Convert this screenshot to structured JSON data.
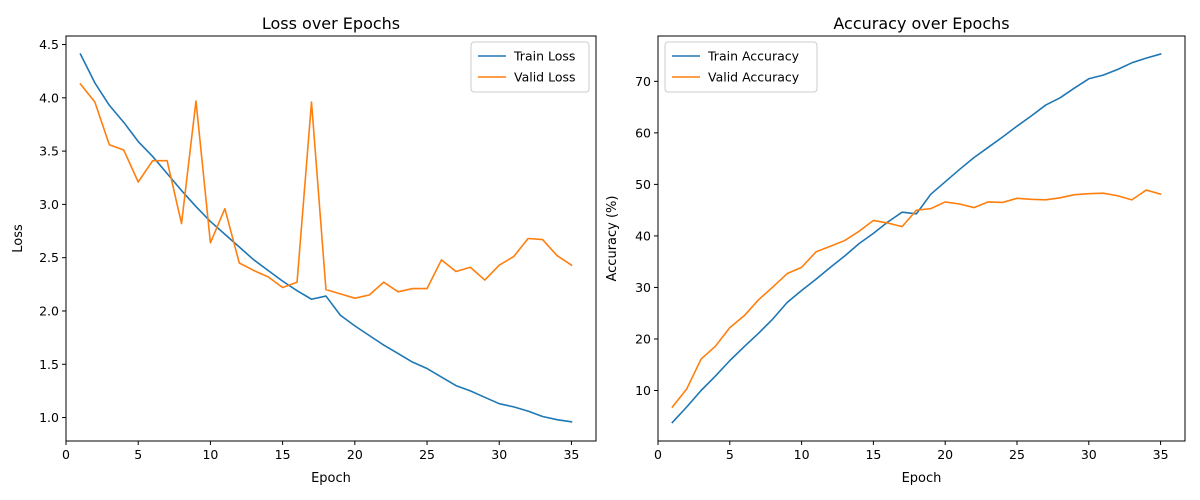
{
  "chart_data": [
    {
      "type": "line",
      "title": "Loss over Epochs",
      "xlabel": "Epoch",
      "ylabel": "Loss",
      "xlim": [
        0,
        36.7
      ],
      "ylim": [
        0.78,
        4.58
      ],
      "xticks": [
        0,
        5,
        10,
        15,
        20,
        25,
        30,
        35
      ],
      "yticks": [
        1.0,
        1.5,
        2.0,
        2.5,
        3.0,
        3.5,
        4.0,
        4.5
      ],
      "ytick_labels": [
        "1.0",
        "1.5",
        "2.0",
        "2.5",
        "3.0",
        "3.5",
        "4.0",
        "4.5"
      ],
      "legend_position": "top-right",
      "grid": false,
      "x": [
        1,
        2,
        3,
        4,
        5,
        6,
        7,
        8,
        9,
        10,
        11,
        12,
        13,
        14,
        15,
        16,
        17,
        18,
        19,
        20,
        21,
        22,
        23,
        24,
        25,
        26,
        27,
        28,
        29,
        30,
        31,
        32,
        33,
        34,
        35
      ],
      "series": [
        {
          "name": "Train Loss",
          "color": "#1f77b4",
          "values": [
            4.41,
            4.14,
            3.93,
            3.77,
            3.59,
            3.45,
            3.29,
            3.13,
            2.98,
            2.84,
            2.72,
            2.6,
            2.48,
            2.38,
            2.28,
            2.19,
            2.11,
            2.14,
            1.96,
            1.86,
            1.77,
            1.68,
            1.6,
            1.52,
            1.46,
            1.38,
            1.3,
            1.25,
            1.19,
            1.13,
            1.1,
            1.06,
            1.01,
            0.98,
            0.96
          ]
        },
        {
          "name": "Valid Loss",
          "color": "#ff7f0e",
          "values": [
            4.13,
            3.96,
            3.56,
            3.51,
            3.21,
            3.41,
            3.41,
            2.82,
            3.97,
            2.64,
            2.96,
            2.45,
            2.38,
            2.32,
            2.22,
            2.27,
            3.96,
            2.2,
            2.16,
            2.12,
            2.15,
            2.27,
            2.18,
            2.21,
            2.21,
            2.48,
            2.37,
            2.41,
            2.29,
            2.43,
            2.51,
            2.68,
            2.67,
            2.52,
            2.43
          ]
        }
      ]
    },
    {
      "type": "line",
      "title": "Accuracy over Epochs",
      "xlabel": "Epoch",
      "ylabel": "Accuracy (%)",
      "xlim": [
        0,
        36.7
      ],
      "ylim": [
        0.2,
        78.8
      ],
      "xticks": [
        0,
        5,
        10,
        15,
        20,
        25,
        30,
        35
      ],
      "yticks": [
        10,
        20,
        30,
        40,
        50,
        60,
        70
      ],
      "ytick_labels": [
        "10",
        "20",
        "30",
        "40",
        "50",
        "60",
        "70"
      ],
      "legend_position": "top-left",
      "grid": false,
      "x": [
        1,
        2,
        3,
        4,
        5,
        6,
        7,
        8,
        9,
        10,
        11,
        12,
        13,
        14,
        15,
        16,
        17,
        18,
        19,
        20,
        21,
        22,
        23,
        24,
        25,
        26,
        27,
        28,
        29,
        30,
        31,
        32,
        33,
        34,
        35
      ],
      "series": [
        {
          "name": "Train Accuracy",
          "color": "#1f77b4",
          "values": [
            3.8,
            6.8,
            10.0,
            12.8,
            15.8,
            18.5,
            21.1,
            23.9,
            27.1,
            29.4,
            31.6,
            33.9,
            36.1,
            38.5,
            40.5,
            42.7,
            44.6,
            44.3,
            48.1,
            50.5,
            52.9,
            55.2,
            57.2,
            59.2,
            61.3,
            63.3,
            65.4,
            66.8,
            68.7,
            70.5,
            71.2,
            72.3,
            73.6,
            74.5,
            75.3
          ]
        },
        {
          "name": "Valid Accuracy",
          "color": "#ff7f0e",
          "values": [
            6.8,
            10.3,
            16.1,
            18.6,
            22.2,
            24.5,
            27.6,
            30.1,
            32.7,
            33.9,
            36.9,
            38.0,
            39.1,
            40.9,
            43.0,
            42.5,
            41.8,
            45.0,
            45.3,
            46.6,
            46.2,
            45.5,
            46.6,
            46.5,
            47.3,
            47.1,
            47.0,
            47.4,
            48.0,
            48.2,
            48.3,
            47.8,
            47.0,
            48.9,
            48.1
          ]
        }
      ]
    }
  ]
}
